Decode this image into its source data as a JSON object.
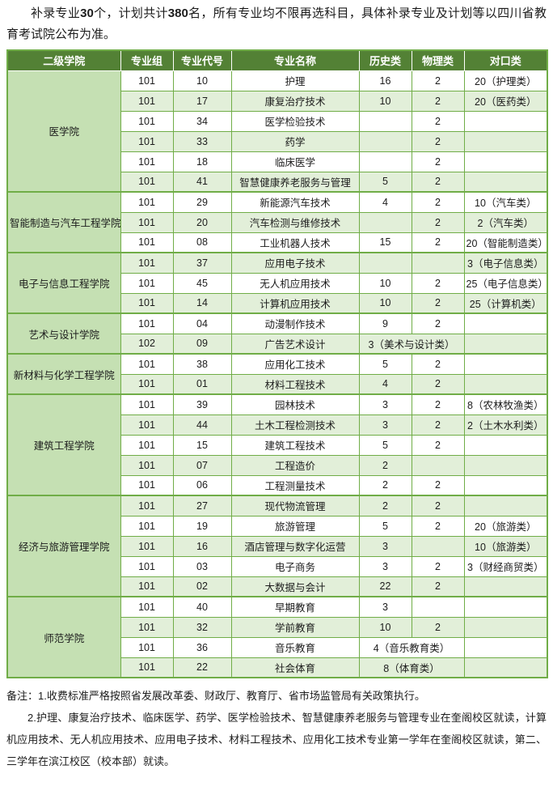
{
  "colors": {
    "header_bg": "#538135",
    "college_bg": "#c5e0b3",
    "band_bg": "#e2efd9",
    "border": "#70ad47"
  },
  "intro": {
    "segments": [
      {
        "text": "补录专业",
        "bold": false
      },
      {
        "text": "30",
        "bold": true
      },
      {
        "text": "个，计划共计",
        "bold": false
      },
      {
        "text": "380",
        "bold": true
      },
      {
        "text": "名，所有专业均不限再选科目，具体补录专业及计划等以四川省教育考试院公布为准。",
        "bold": false
      }
    ]
  },
  "table": {
    "headers": [
      "二级学院",
      "专业组",
      "专业代号",
      "专业名称",
      "历史类",
      "物理类",
      "对口类"
    ],
    "colleges": [
      {
        "name": "医学院",
        "rows": [
          {
            "group": "101",
            "code": "10",
            "major": "护理",
            "history": "16",
            "physics": "2",
            "duikou": "20（护理类）"
          },
          {
            "group": "101",
            "code": "17",
            "major": "康复治疗技术",
            "history": "10",
            "physics": "2",
            "duikou": "20（医药类）"
          },
          {
            "group": "101",
            "code": "34",
            "major": "医学检验技术",
            "history": "",
            "physics": "2",
            "duikou": ""
          },
          {
            "group": "101",
            "code": "33",
            "major": "药学",
            "history": "",
            "physics": "2",
            "duikou": ""
          },
          {
            "group": "101",
            "code": "18",
            "major": "临床医学",
            "history": "",
            "physics": "2",
            "duikou": ""
          },
          {
            "group": "101",
            "code": "41",
            "major": "智慧健康养老服务与管理",
            "history": "5",
            "physics": "2",
            "duikou": ""
          }
        ]
      },
      {
        "name": "智能制造与汽车工程学院",
        "rows": [
          {
            "group": "101",
            "code": "29",
            "major": "新能源汽车技术",
            "history": "4",
            "physics": "2",
            "duikou": "10（汽车类）"
          },
          {
            "group": "101",
            "code": "20",
            "major": "汽车检测与维修技术",
            "history": "",
            "physics": "2",
            "duikou": "2（汽车类）"
          },
          {
            "group": "101",
            "code": "08",
            "major": "工业机器人技术",
            "history": "15",
            "physics": "2",
            "duikou": "20（智能制造类）"
          }
        ]
      },
      {
        "name": "电子与信息工程学院",
        "rows": [
          {
            "group": "101",
            "code": "37",
            "major": "应用电子技术",
            "history": "",
            "physics": "",
            "duikou": "3（电子信息类）"
          },
          {
            "group": "101",
            "code": "45",
            "major": "无人机应用技术",
            "history": "10",
            "physics": "2",
            "duikou": "25（电子信息类）"
          },
          {
            "group": "101",
            "code": "14",
            "major": "计算机应用技术",
            "history": "10",
            "physics": "2",
            "duikou": "25（计算机类）"
          }
        ]
      },
      {
        "name": "艺术与设计学院",
        "rows": [
          {
            "group": "101",
            "code": "04",
            "major": "动漫制作技术",
            "history": "9",
            "physics": "2",
            "duikou": ""
          },
          {
            "group": "102",
            "code": "09",
            "major": "广告艺术设计",
            "span2": "3（美术与设计类）",
            "duikou": ""
          }
        ]
      },
      {
        "name": "新材料与化学工程学院",
        "rows": [
          {
            "group": "101",
            "code": "38",
            "major": "应用化工技术",
            "history": "5",
            "physics": "2",
            "duikou": ""
          },
          {
            "group": "101",
            "code": "01",
            "major": "材料工程技术",
            "history": "4",
            "physics": "2",
            "duikou": ""
          }
        ]
      },
      {
        "name": "建筑工程学院",
        "rows": [
          {
            "group": "101",
            "code": "39",
            "major": "园林技术",
            "history": "3",
            "physics": "2",
            "duikou": "8（农林牧渔类）"
          },
          {
            "group": "101",
            "code": "44",
            "major": "土木工程检测技术",
            "history": "3",
            "physics": "2",
            "duikou": "2（土木水利类）"
          },
          {
            "group": "101",
            "code": "15",
            "major": "建筑工程技术",
            "history": "5",
            "physics": "2",
            "duikou": ""
          },
          {
            "group": "101",
            "code": "07",
            "major": "工程造价",
            "history": "2",
            "physics": "",
            "duikou": ""
          },
          {
            "group": "101",
            "code": "06",
            "major": "工程测量技术",
            "history": "2",
            "physics": "2",
            "duikou": ""
          }
        ]
      },
      {
        "name": "经济与旅游管理学院",
        "rows": [
          {
            "group": "101",
            "code": "27",
            "major": "现代物流管理",
            "history": "2",
            "physics": "2",
            "duikou": ""
          },
          {
            "group": "101",
            "code": "19",
            "major": "旅游管理",
            "history": "5",
            "physics": "2",
            "duikou": "20（旅游类）"
          },
          {
            "group": "101",
            "code": "16",
            "major": "酒店管理与数字化运营",
            "history": "3",
            "physics": "",
            "duikou": "10（旅游类）"
          },
          {
            "group": "101",
            "code": "03",
            "major": "电子商务",
            "history": "3",
            "physics": "2",
            "duikou": "3（财经商贸类）"
          },
          {
            "group": "101",
            "code": "02",
            "major": "大数据与会计",
            "history": "22",
            "physics": "2",
            "duikou": ""
          }
        ]
      },
      {
        "name": "师范学院",
        "rows": [
          {
            "group": "101",
            "code": "40",
            "major": "早期教育",
            "history": "3",
            "physics": "",
            "duikou": ""
          },
          {
            "group": "101",
            "code": "32",
            "major": "学前教育",
            "history": "10",
            "physics": "2",
            "duikou": ""
          },
          {
            "group": "101",
            "code": "36",
            "major": "音乐教育",
            "span2": "4（音乐教育类）",
            "duikou": ""
          },
          {
            "group": "101",
            "code": "22",
            "major": "社会体育",
            "span2": "8（体育类）",
            "duikou": ""
          }
        ]
      }
    ]
  },
  "notes": [
    "备注：1.收费标准严格按照省发展改革委、财政厅、教育厅、省市场监管局有关政策执行。",
    "2.护理、康复治疗技术、临床医学、药学、医学检验技术、智慧健康养老服务与管理专业在奎阁校区就读，计算机应用技术、无人机应用技术、应用电子技术、材料工程技术、应用化工技术专业第一学年在奎阁校区就读，第二、三学年在滨江校区（校本部）就读。"
  ]
}
